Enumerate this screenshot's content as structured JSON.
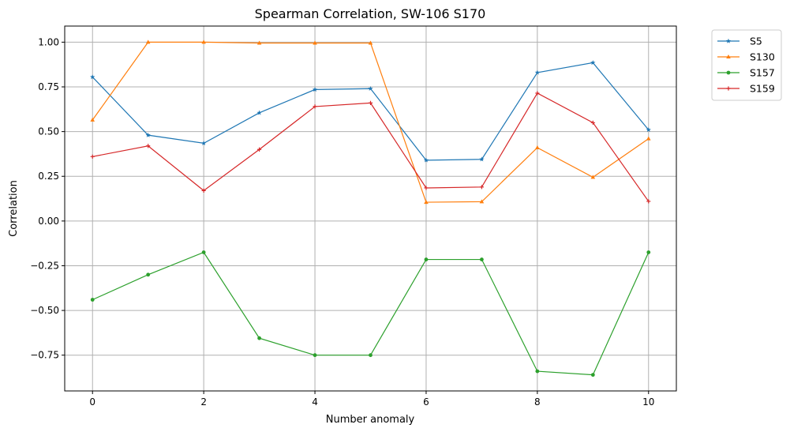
{
  "chart_data": {
    "type": "line",
    "title": "Spearman Correlation, SW-106  S170",
    "xlabel": "Number anomaly",
    "ylabel": "Correlation",
    "x": [
      0,
      1,
      2,
      3,
      4,
      5,
      6,
      7,
      8,
      9,
      10
    ],
    "xlim": [
      -0.5,
      10.5
    ],
    "ylim": [
      -0.95,
      1.09
    ],
    "xticks": [
      0,
      2,
      4,
      6,
      8,
      10
    ],
    "xtick_labels": [
      "0",
      "2",
      "4",
      "6",
      "8",
      "10"
    ],
    "yticks": [
      1.0,
      0.75,
      0.5,
      0.25,
      0.0,
      -0.25,
      -0.5,
      -0.75
    ],
    "ytick_labels": [
      "1.00",
      "0.75",
      "0.50",
      "0.25",
      "0.00",
      "−0.25",
      "−0.50",
      "−0.75"
    ],
    "grid": true,
    "legend_position": "outside-top-right",
    "series": [
      {
        "name": "S5",
        "color": "#1f77b4",
        "marker": "star",
        "values": [
          0.805,
          0.48,
          0.435,
          0.605,
          0.735,
          0.74,
          0.34,
          0.345,
          0.83,
          0.885,
          0.51
        ]
      },
      {
        "name": "S130",
        "color": "#ff7f0e",
        "marker": "triangle",
        "values": [
          0.565,
          1.0,
          1.0,
          0.995,
          0.995,
          0.995,
          0.105,
          0.108,
          0.41,
          0.245,
          0.46
        ]
      },
      {
        "name": "S157",
        "color": "#2ca02c",
        "marker": "circle",
        "values": [
          -0.44,
          -0.3,
          -0.175,
          -0.655,
          -0.75,
          -0.75,
          -0.215,
          -0.215,
          -0.84,
          -0.86,
          -0.175
        ]
      },
      {
        "name": "S159",
        "color": "#d62728",
        "marker": "plus",
        "values": [
          0.36,
          0.42,
          0.17,
          0.4,
          0.64,
          0.66,
          0.185,
          0.19,
          0.715,
          0.55,
          0.11
        ]
      }
    ]
  }
}
